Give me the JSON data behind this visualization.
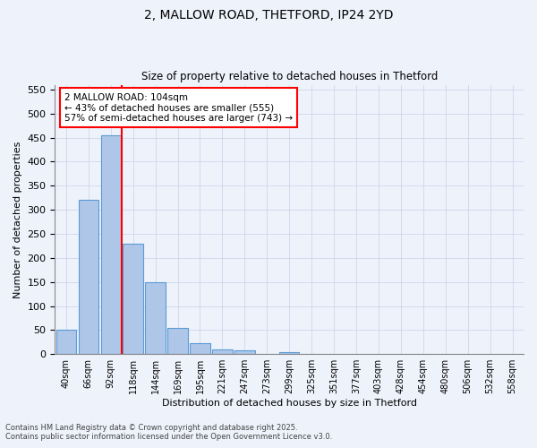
{
  "title1": "2, MALLOW ROAD, THETFORD, IP24 2YD",
  "title2": "Size of property relative to detached houses in Thetford",
  "xlabel": "Distribution of detached houses by size in Thetford",
  "ylabel": "Number of detached properties",
  "categories": [
    "40sqm",
    "66sqm",
    "92sqm",
    "118sqm",
    "144sqm",
    "169sqm",
    "195sqm",
    "221sqm",
    "247sqm",
    "273sqm",
    "299sqm",
    "325sqm",
    "351sqm",
    "377sqm",
    "403sqm",
    "428sqm",
    "454sqm",
    "480sqm",
    "506sqm",
    "532sqm",
    "558sqm"
  ],
  "values": [
    50,
    320,
    455,
    230,
    150,
    55,
    22,
    10,
    8,
    0,
    5,
    0,
    0,
    0,
    0,
    0,
    0,
    0,
    0,
    0,
    0
  ],
  "bar_color": "#aec6e8",
  "bar_edge_color": "#5b9bd5",
  "annotation_text": "2 MALLOW ROAD: 104sqm\n← 43% of detached houses are smaller (555)\n57% of semi-detached houses are larger (743) →",
  "annotation_box_color": "white",
  "annotation_box_edge_color": "red",
  "red_line_color": "red",
  "red_line_x": 2.5,
  "ylim": [
    0,
    560
  ],
  "yticks": [
    0,
    50,
    100,
    150,
    200,
    250,
    300,
    350,
    400,
    450,
    500,
    550
  ],
  "footer_line1": "Contains HM Land Registry data © Crown copyright and database right 2025.",
  "footer_line2": "Contains public sector information licensed under the Open Government Licence v3.0.",
  "background_color": "#eef2fb",
  "grid_color": "#c8d0e8"
}
